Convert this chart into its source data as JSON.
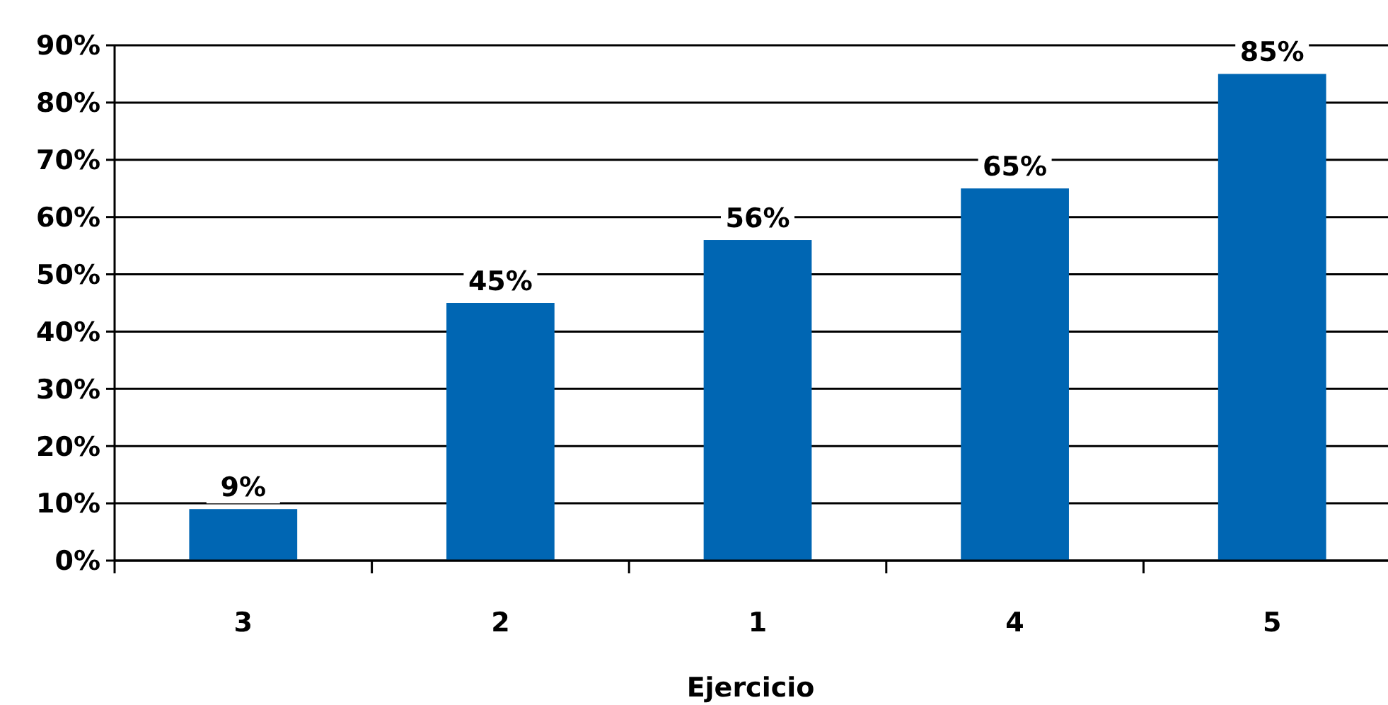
{
  "chart_data": {
    "type": "bar",
    "xlabel": "Ejercicio",
    "categories": [
      "3",
      "2",
      "1",
      "4",
      "5"
    ],
    "values": [
      9,
      45,
      56,
      65,
      85
    ],
    "color": "#0066b3",
    "value_labels": [
      "9%",
      "45%",
      "56%",
      "65%",
      "85%"
    ],
    "ylim": [
      0,
      90
    ],
    "yticks": [
      {
        "value": 0,
        "label": "0%"
      },
      {
        "value": 10,
        "label": "10%"
      },
      {
        "value": 20,
        "label": "20%"
      },
      {
        "value": 30,
        "label": "30%"
      },
      {
        "value": 40,
        "label": "40%"
      },
      {
        "value": 50,
        "label": "50%"
      },
      {
        "value": 60,
        "label": "60%"
      },
      {
        "value": 70,
        "label": "70%"
      },
      {
        "value": 80,
        "label": "80%"
      },
      {
        "value": 90,
        "label": "90%"
      }
    ],
    "grid": "y"
  }
}
